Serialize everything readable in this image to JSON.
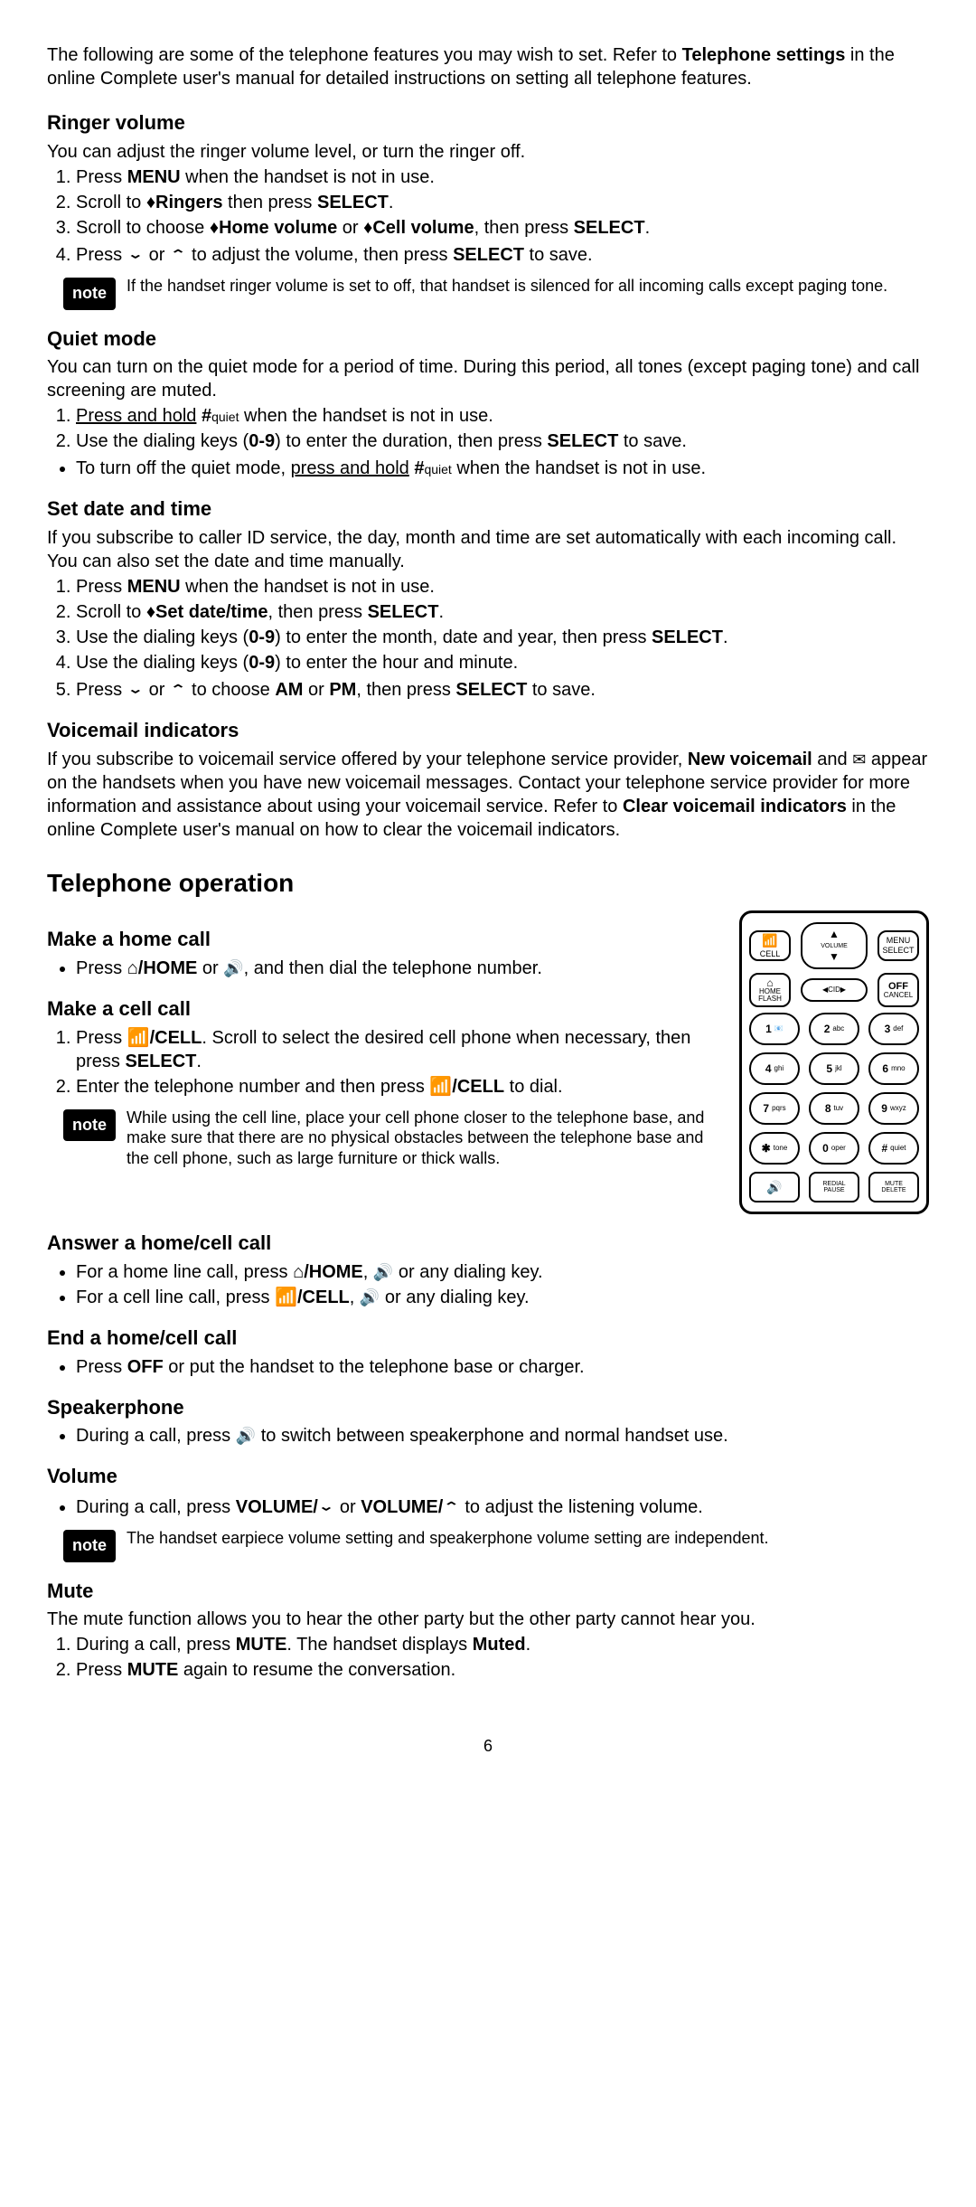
{
  "intro": {
    "line1": "The following are some of the telephone features you may wish to set. Refer to ",
    "bold1": "Telephone settings",
    "line2": " in the online Complete user's manual for detailed instructions on setting all telephone features."
  },
  "note_label": "note",
  "ringer": {
    "heading": "Ringer volume",
    "text": "You can adjust the ringer volume level, or turn the ringer off.",
    "s1a": "Press ",
    "s1b": "MENU",
    "s1c": " when the handset is not in use.",
    "s2a": "Scroll to ",
    "s2b": "♦Ringers",
    "s2c": " then press ",
    "s2d": "SELECT",
    "s2e": ".",
    "s3a": "Scroll to choose ",
    "s3b": "♦Home volume",
    "s3c": " or ",
    "s3d": "♦Cell volume",
    "s3e": ", then press ",
    "s3f": "SELECT",
    "s3g": ".",
    "s4a": "Press ",
    "s4b": "⌄",
    "s4c": " or ",
    "s4d": "⌃",
    "s4e": " to adjust the volume, then press ",
    "s4f": "SELECT",
    "s4g": " to save.",
    "note": "If the handset ringer volume is set to off, that handset is silenced for all incoming calls except paging tone."
  },
  "quiet": {
    "heading": "Quiet mode",
    "text": "You can turn on the quiet mode for a period of time. During this period, all tones (except paging tone) and call screening are muted.",
    "s1a": "Press and hold",
    "s1b": " #",
    "s1c": "quiet",
    "s1d": " when the handset is not in use.",
    "s2a": "Use the dialing keys (",
    "s2b": "0-9",
    "s2c": ") to enter the duration, then press ",
    "s2d": "SELECT",
    "s2e": " to save.",
    "b1a": "To turn off the quiet mode, ",
    "b1b": "press and hold",
    "b1c": " #",
    "b1d": "quiet",
    "b1e": " when the handset is not in use."
  },
  "datetime": {
    "heading": "Set date and time",
    "text": "If you subscribe to caller ID service, the day, month and time are set automatically with each incoming call. You can also set the date and time manually.",
    "s1a": "Press ",
    "s1b": "MENU",
    "s1c": " when the handset is not in use.",
    "s2a": "Scroll to ",
    "s2b": "♦Set date/time",
    "s2c": ", then press ",
    "s2d": "SELECT",
    "s2e": ".",
    "s3a": "Use the dialing keys (",
    "s3b": "0-9",
    "s3c": ") to enter the month, date and year, then press ",
    "s3d": "SELECT",
    "s3e": ".",
    "s4a": "Use the dialing keys (",
    "s4b": "0-9",
    "s4c": ") to enter the hour and minute.",
    "s5a": "Press ",
    "s5b": "⌄",
    "s5c": " or ",
    "s5d": "⌃",
    "s5e": " to choose ",
    "s5f": "AM",
    "s5g": " or ",
    "s5h": "PM",
    "s5i": ", then press ",
    "s5j": "SELECT",
    "s5k": " to save."
  },
  "vm": {
    "heading": "Voicemail indicators",
    "t1": "If you subscribe to voicemail service offered by your telephone service provider, ",
    "t2": "New voicemail",
    "t3": " and ",
    "icon": "✉",
    "t4": " appear on the handsets when you have new voicemail messages. Contact your telephone service provider for more information and assistance about using your voicemail service. Refer to ",
    "t5": "Clear voicemail indicators",
    "t6": " in the online Complete user's manual on how to clear the voicemail indicators."
  },
  "op_title": "Telephone operation",
  "home": {
    "heading": "Make a home call",
    "b1a": "Press ",
    "b1b": "⌂/HOME",
    "b1c": " or ",
    "spk": "🔊",
    "b1d": ", and then dial the telephone number."
  },
  "cell": {
    "heading": "Make a cell call",
    "s1a": "Press ",
    "s1b": "📶/CELL",
    "s1c": ". Scroll to select the desired cell phone when necessary, then press ",
    "s1d": "SELECT",
    "s1e": ".",
    "s2a": "Enter the telephone number and then press ",
    "s2b": "📶/CELL",
    "s2c": " to dial.",
    "note": "While using the cell line, place your cell phone closer to the telephone base, and make sure that there are no physical obstacles between the telephone base and the cell phone, such as large furniture or thick walls."
  },
  "answer": {
    "heading": "Answer a home/cell call",
    "b1a": "For a home line call, press ",
    "b1b": "⌂/HOME",
    "b1c": ", ",
    "spk1": "🔊",
    "b1d": " or any dialing key.",
    "b2a": "For a cell line call, press ",
    "b2b": "📶/CELL",
    "b2c": ", ",
    "spk2": "🔊",
    "b2d": " or any dialing key."
  },
  "end": {
    "heading": "End a home/cell call",
    "b1a": "Press ",
    "b1b": "OFF",
    "b1c": " or put the handset to the telephone base or charger."
  },
  "speaker": {
    "heading": "Speakerphone",
    "b1a": "During a call, press ",
    "spk": "🔊",
    "b1b": " to switch between speakerphone and normal handset use."
  },
  "volume": {
    "heading": "Volume",
    "b1a": "During a call, press ",
    "b1b": "VOLUME/",
    "d1": "⌄",
    "b1c": " or ",
    "b1d": "VOLUME/",
    "d2": "⌃",
    "b1e": " to adjust the listening volume.",
    "note": "The handset earpiece volume setting and speakerphone volume setting are independent."
  },
  "mute": {
    "heading": "Mute",
    "text": "The mute function allows you to hear the other party but the other party cannot hear you.",
    "s1a": "During a call, press ",
    "s1b": "MUTE",
    "s1c": ". The handset displays ",
    "s1d": "Muted",
    "s1e": ".",
    "s2a": "Press ",
    "s2b": "MUTE",
    "s2c": " again to resume the conversation."
  },
  "keypad": {
    "cell": "CELL",
    "menu_top": "MENU",
    "menu_bot": "SELECT",
    "volume": "VOLUME",
    "cid": "CID",
    "home_top": "⌂",
    "home_mid": "HOME",
    "home_bot": "FLASH",
    "off_top": "OFF",
    "off_bot": "CANCEL",
    "keys": [
      {
        "n": "1",
        "s": "📧"
      },
      {
        "n": "2",
        "s": "abc"
      },
      {
        "n": "3",
        "s": "def"
      },
      {
        "n": "4",
        "s": "ghi"
      },
      {
        "n": "5",
        "s": "jkl"
      },
      {
        "n": "6",
        "s": "mno"
      },
      {
        "n": "7",
        "s": "pqrs"
      },
      {
        "n": "8",
        "s": "tuv"
      },
      {
        "n": "9",
        "s": "wxyz"
      },
      {
        "n": "✱",
        "s": "tone"
      },
      {
        "n": "0",
        "s": "oper"
      },
      {
        "n": "#",
        "s": "quiet"
      }
    ],
    "bl": "🔊",
    "bm_top": "REDIAL",
    "bm_bot": "PAUSE",
    "br_top": "MUTE",
    "br_bot": "DELETE"
  },
  "page": "6"
}
